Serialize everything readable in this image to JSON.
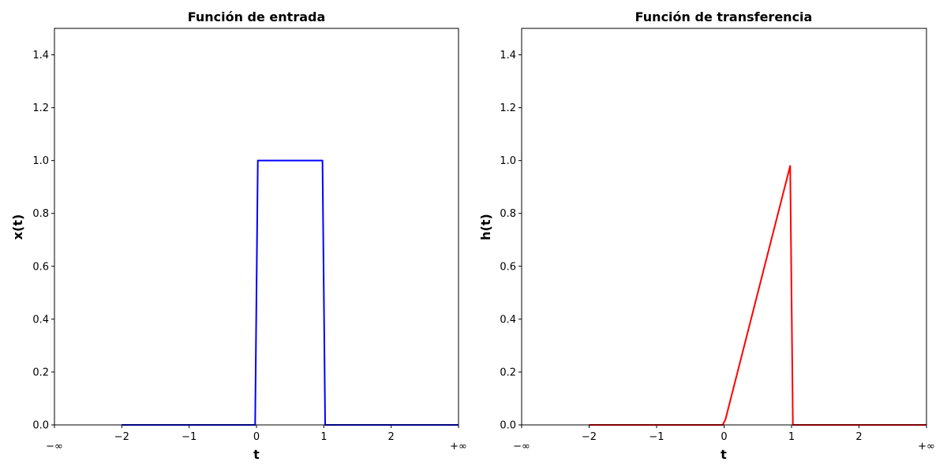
{
  "chart_data": [
    {
      "type": "line",
      "title": "Función de entrada",
      "xlabel": "t",
      "ylabel": "x(t)",
      "xlim": [
        -3,
        3
      ],
      "ylim": [
        0,
        1.5
      ],
      "x_ticks": [
        {
          "value": -3,
          "label": "−∞"
        },
        {
          "value": -2,
          "label": "−2"
        },
        {
          "value": -1,
          "label": "−1"
        },
        {
          "value": 0,
          "label": "0"
        },
        {
          "value": 1,
          "label": "1"
        },
        {
          "value": 2,
          "label": "2"
        },
        {
          "value": 3,
          "label": "+∞"
        }
      ],
      "y_ticks": [
        {
          "value": 0,
          "label": "0.0"
        },
        {
          "value": 0.2,
          "label": "0.2"
        },
        {
          "value": 0.4,
          "label": "0.4"
        },
        {
          "value": 0.6,
          "label": "0.6"
        },
        {
          "value": 0.8,
          "label": "0.8"
        },
        {
          "value": 1.0,
          "label": "1.0"
        },
        {
          "value": 1.2,
          "label": "1.2"
        },
        {
          "value": 1.4,
          "label": "1.4"
        }
      ],
      "grid": false,
      "series": [
        {
          "color": "#0000ff",
          "x": [
            -2,
            -0.02,
            0.02,
            0.98,
            1.02,
            3
          ],
          "y": [
            0,
            0,
            1,
            1,
            0,
            0
          ]
        }
      ]
    },
    {
      "type": "line",
      "title": "Función de transferencia",
      "xlabel": "t",
      "ylabel": "h(t)",
      "xlim": [
        -3,
        3
      ],
      "ylim": [
        0,
        1.5
      ],
      "x_ticks": [
        {
          "value": -3,
          "label": "−∞"
        },
        {
          "value": -2,
          "label": "−2"
        },
        {
          "value": -1,
          "label": "−1"
        },
        {
          "value": 0,
          "label": "0"
        },
        {
          "value": 1,
          "label": "1"
        },
        {
          "value": 2,
          "label": "2"
        },
        {
          "value": 3,
          "label": "+∞"
        }
      ],
      "y_ticks": [
        {
          "value": 0,
          "label": "0.0"
        },
        {
          "value": 0.2,
          "label": "0.2"
        },
        {
          "value": 0.4,
          "label": "0.4"
        },
        {
          "value": 0.6,
          "label": "0.6"
        },
        {
          "value": 0.8,
          "label": "0.8"
        },
        {
          "value": 1.0,
          "label": "1.0"
        },
        {
          "value": 1.2,
          "label": "1.2"
        },
        {
          "value": 1.4,
          "label": "1.4"
        }
      ],
      "grid": false,
      "series": [
        {
          "color": "#ff0000",
          "x": [
            -2,
            -0.02,
            0.02,
            0.98,
            1.02,
            3
          ],
          "y": [
            0,
            0,
            0.02,
            0.98,
            0,
            0
          ]
        }
      ]
    }
  ]
}
